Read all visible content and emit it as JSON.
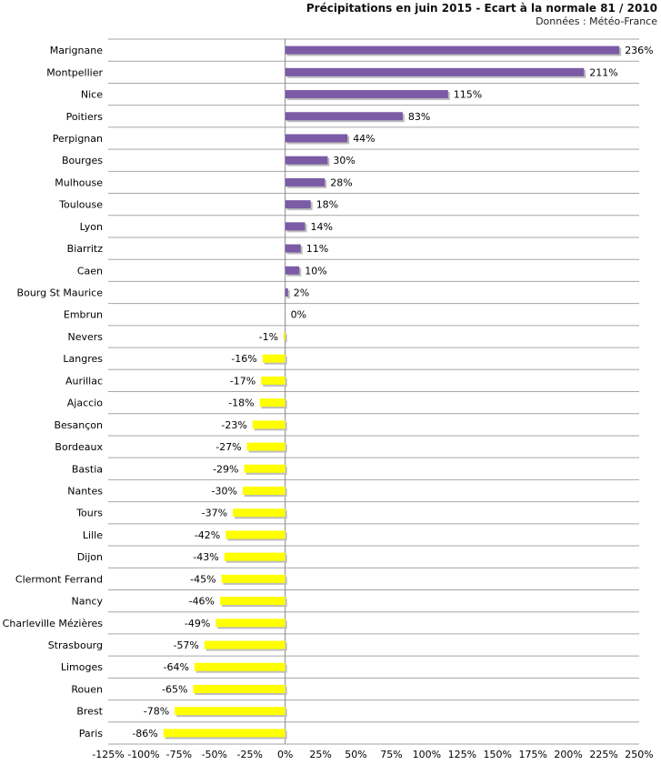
{
  "chart_data": {
    "type": "bar",
    "orientation": "horizontal",
    "title": "Précipitations en juin 2015 - Ecart à la normale 81 / 2010",
    "subtitle": "Données : Météo-France",
    "categories": [
      "Marignane",
      "Montpellier",
      "Nice",
      "Poitiers",
      "Perpignan",
      "Bourges",
      "Mulhouse",
      "Toulouse",
      "Lyon",
      "Biarritz",
      "Caen",
      "Bourg St Maurice",
      "Embrun",
      "Nevers",
      "Langres",
      "Aurillac",
      "Ajaccio",
      "Besançon",
      "Bordeaux",
      "Bastia",
      "Nantes",
      "Tours",
      "Lille",
      "Dijon",
      "Clermont Ferrand",
      "Nancy",
      "Charleville Mézières",
      "Strasbourg",
      "Limoges",
      "Rouen",
      "Brest",
      "Paris"
    ],
    "values": [
      236,
      211,
      115,
      83,
      44,
      30,
      28,
      18,
      14,
      11,
      10,
      2,
      0,
      -1,
      -16,
      -17,
      -18,
      -23,
      -27,
      -29,
      -30,
      -37,
      -42,
      -43,
      -45,
      -46,
      -49,
      -57,
      -64,
      -65,
      -78,
      -86
    ],
    "data_labels": [
      "236%",
      "211%",
      "115%",
      "83%",
      "44%",
      "30%",
      "28%",
      "18%",
      "14%",
      "11%",
      "10%",
      "2%",
      "0%",
      "-1%",
      "-16%",
      "-17%",
      "-18%",
      "-23%",
      "-27%",
      "-29%",
      "-30%",
      "-37%",
      "-42%",
      "-43%",
      "-45%",
      "-46%",
      "-49%",
      "-57%",
      "-64%",
      "-65%",
      "-78%",
      "-86%"
    ],
    "xlim": [
      -125,
      250
    ],
    "xticks": [
      -125,
      -100,
      -75,
      -50,
      -25,
      0,
      25,
      50,
      75,
      100,
      125,
      150,
      175,
      200,
      225,
      250
    ],
    "xtick_labels": [
      "-125%",
      "-100%",
      "-75%",
      "-50%",
      "-25%",
      "0%",
      "25%",
      "50%",
      "75%",
      "100%",
      "125%",
      "150%",
      "175%",
      "200%",
      "225%",
      "250%"
    ],
    "grid": "horizontal",
    "legend": "none",
    "colors": {
      "positive": "#7b5ba6",
      "negative": "#ffff00",
      "shadow": "#bdbdbd",
      "gridline": "#a6a6a6",
      "axis": "#888888"
    }
  }
}
